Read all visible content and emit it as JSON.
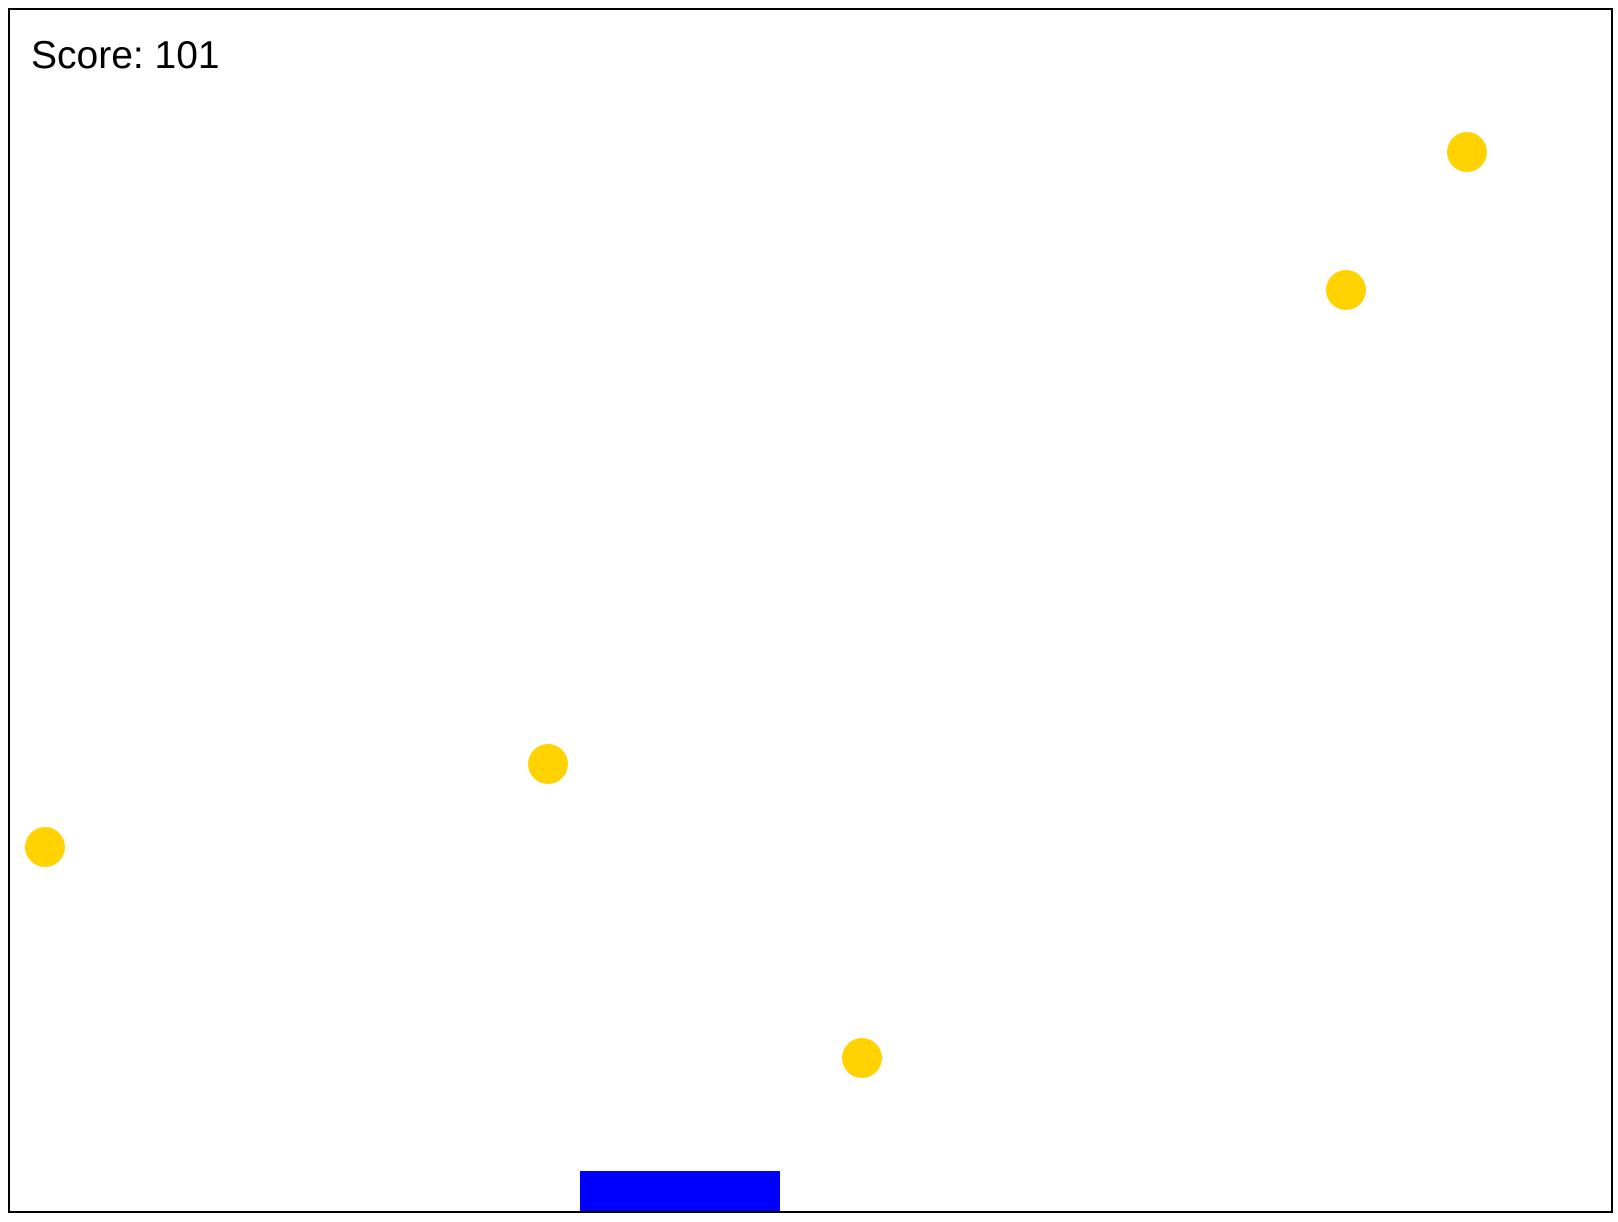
{
  "hud": {
    "score_label": "Score: 101"
  },
  "colors": {
    "coin": "#FFD200",
    "paddle": "#0000FF",
    "border": "#000000",
    "background": "#FFFFFF"
  },
  "objects": {
    "coin_count": 5,
    "paddle_icon": "paddle-rect",
    "coin_icon": "coin-circle"
  }
}
